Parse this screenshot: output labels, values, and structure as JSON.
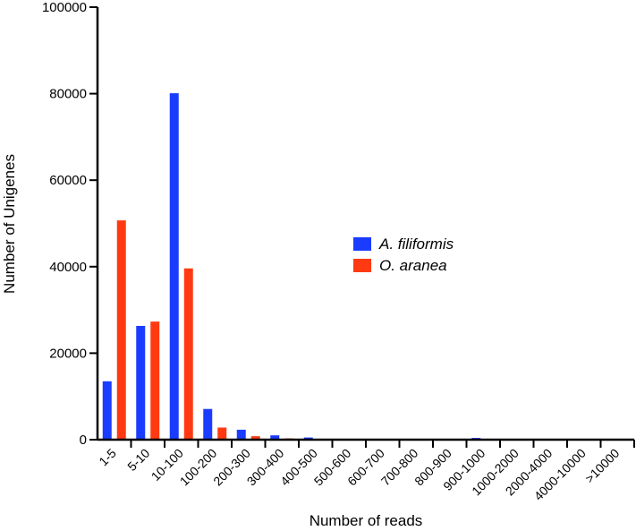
{
  "chart_data": {
    "type": "bar",
    "xlabel": "Number of reads",
    "ylabel": "Number of Unigenes",
    "ylim": [
      0,
      100000
    ],
    "yticks": [
      0,
      20000,
      40000,
      60000,
      80000,
      100000
    ],
    "legend_placement": "center-right",
    "grid": false,
    "categories": [
      "1-5",
      "5-10",
      "10-100",
      "100-200",
      "200-300",
      "300-400",
      "400-500",
      "500-600",
      "600-700",
      "700-800",
      "800-900",
      "900-1000",
      "1000-2000",
      "2000-4000",
      "4000-10000",
      ">10000"
    ],
    "series": [
      {
        "name": "A. filiformis",
        "color": "#1a3cff",
        "values": [
          13500,
          26300,
          80100,
          7100,
          2300,
          1000,
          500,
          200,
          100,
          100,
          100,
          400,
          0,
          0,
          0,
          0
        ]
      },
      {
        "name": "O. aranea",
        "color": "#ff3a12",
        "values": [
          50700,
          27300,
          39600,
          2800,
          800,
          300,
          100,
          0,
          0,
          0,
          0,
          0,
          0,
          0,
          0,
          0
        ]
      }
    ]
  }
}
